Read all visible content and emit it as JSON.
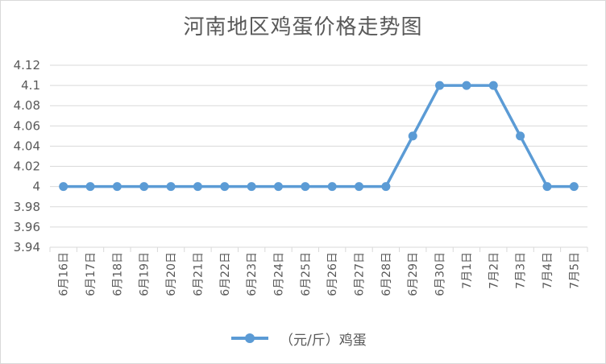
{
  "chart_data": {
    "type": "line",
    "title": "河南地区鸡蛋价格走势图",
    "categories": [
      "6月16日",
      "6月17日",
      "6月18日",
      "6月19日",
      "6月20日",
      "6月21日",
      "6月22日",
      "6月23日",
      "6月24日",
      "6月25日",
      "6月26日",
      "6月27日",
      "6月28日",
      "6月29日",
      "6月30日",
      "7月1日",
      "7月2日",
      "7月3日",
      "7月4日",
      "7月5日"
    ],
    "series": [
      {
        "name": "（元/斤）鸡蛋",
        "values": [
          4,
          4,
          4,
          4,
          4,
          4,
          4,
          4,
          4,
          4,
          4,
          4,
          4,
          4.05,
          4.1,
          4.1,
          4.1,
          4.05,
          4,
          4
        ],
        "color": "#5b9bd5"
      }
    ],
    "ylim": [
      3.94,
      4.12
    ],
    "yticks": [
      "4.12",
      "4.1",
      "4.08",
      "4.06",
      "4.04",
      "4.02",
      "4",
      "3.98",
      "3.96",
      "3.94"
    ],
    "grid": true,
    "legend_position": "bottom"
  }
}
